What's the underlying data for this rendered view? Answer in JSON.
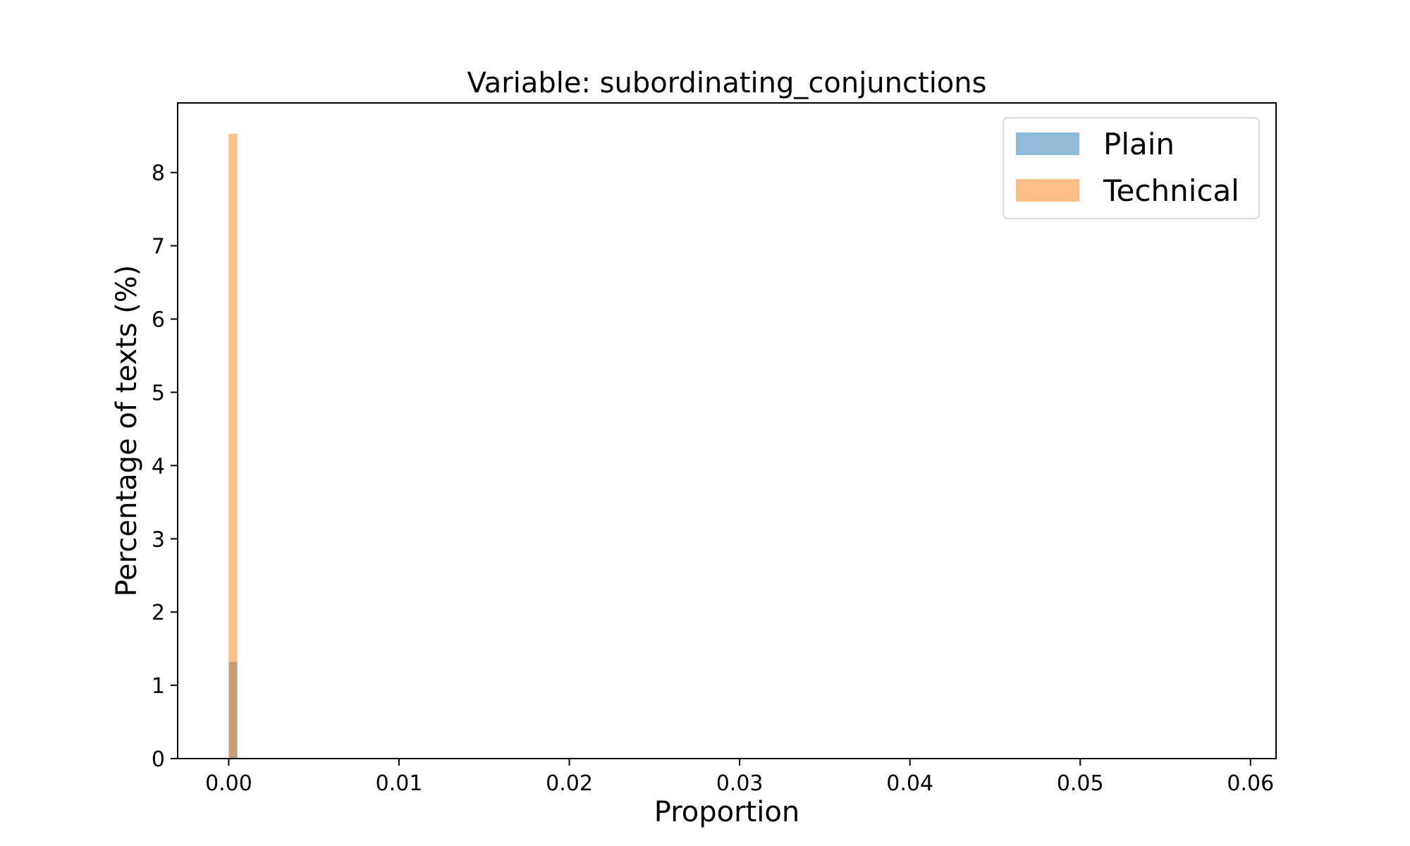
{
  "chart_data": {
    "type": "histogram",
    "title": "Variable: subordinating_conjunctions",
    "xlabel": "Proportion",
    "ylabel": "Percentage of texts (%)",
    "xlim": [
      -0.003,
      0.0615
    ],
    "ylim": [
      0,
      8.95
    ],
    "xticks": [
      0.0,
      0.01,
      0.02,
      0.03,
      0.04,
      0.05,
      0.06
    ],
    "xtick_labels": [
      "0.00",
      "0.01",
      "0.02",
      "0.03",
      "0.04",
      "0.05",
      "0.06"
    ],
    "yticks": [
      0,
      1,
      2,
      3,
      4,
      5,
      6,
      7,
      8
    ],
    "ytick_labels": [
      "0",
      "1",
      "2",
      "3",
      "4",
      "5",
      "6",
      "7",
      "8"
    ],
    "grid": false,
    "legend_position": "top-right",
    "series": [
      {
        "name": "Plain",
        "color": "#1f77b4",
        "opacity": 0.5,
        "bin_start": 0.0,
        "bin_width": 0.0005,
        "values": [
          1.32,
          0,
          0,
          0,
          0,
          0,
          0,
          0,
          0,
          0,
          0,
          0,
          0,
          0,
          0,
          0,
          0,
          0,
          0,
          0,
          0,
          0,
          0,
          0,
          0,
          0,
          0,
          0,
          0,
          0,
          0,
          0,
          0,
          0,
          0,
          0,
          0,
          0,
          0,
          0,
          0,
          0,
          0,
          0,
          0,
          0,
          0,
          0,
          0,
          0,
          0,
          0,
          0,
          0,
          0,
          0,
          0,
          0,
          0,
          0,
          0,
          0,
          0,
          0,
          0,
          0,
          0,
          0,
          0,
          0,
          0,
          0,
          0,
          0,
          0,
          0,
          0,
          0,
          0,
          0,
          0,
          0,
          0,
          0,
          0,
          0,
          0,
          0,
          0,
          0,
          0,
          0,
          0,
          0,
          0,
          0,
          0,
          0,
          0,
          0,
          0,
          0,
          0,
          0,
          0,
          0,
          0,
          0,
          0,
          0,
          0,
          0,
          0,
          0,
          0,
          0,
          0,
          0,
          0,
          0,
          0
        ]
      },
      {
        "name": "Technical",
        "color": "#ff7f0e",
        "opacity": 0.5,
        "bin_start": 0.0,
        "bin_width": 0.0005,
        "values": [
          8.53,
          0,
          0,
          0,
          0,
          0,
          0,
          0,
          0,
          0,
          0,
          0,
          0,
          0,
          0,
          0,
          0,
          0,
          0,
          0,
          0,
          0,
          0,
          0,
          0,
          0,
          0,
          0,
          0,
          0,
          0,
          0,
          0,
          0,
          0,
          0,
          0,
          0,
          0,
          0,
          0,
          0,
          0,
          0,
          0,
          0,
          0,
          0,
          0,
          0,
          0,
          0,
          0,
          0,
          0,
          0,
          0,
          0,
          0,
          0,
          0,
          0,
          0,
          0,
          0,
          0,
          0,
          0,
          0,
          0,
          0,
          0,
          0,
          0,
          0,
          0,
          0,
          0,
          0,
          0,
          0,
          0,
          0,
          0,
          0,
          0,
          0,
          0,
          0,
          0,
          0,
          0,
          0,
          0,
          0,
          0,
          0,
          0,
          0,
          0,
          0,
          0,
          0,
          0,
          0,
          0,
          0,
          0,
          0,
          0,
          0,
          0,
          0,
          0,
          0,
          0,
          0,
          0,
          0,
          0,
          0
        ]
      }
    ]
  }
}
